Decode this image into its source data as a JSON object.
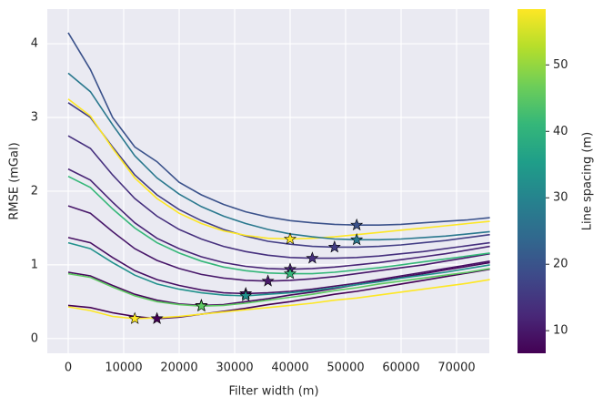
{
  "chart_data": {
    "type": "line",
    "xlabel": "Filter width (m)",
    "ylabel": "RMSE (mGal)",
    "xlim": [
      -3770,
      75900
    ],
    "ylim": [
      -0.2,
      4.47
    ],
    "xticks": [
      0,
      10000,
      20000,
      30000,
      40000,
      50000,
      60000,
      70000
    ],
    "yticks": [
      0,
      1,
      2,
      3,
      4
    ],
    "grid": true,
    "x": [
      0,
      4000,
      8000,
      12000,
      16000,
      20000,
      24000,
      28000,
      32000,
      36000,
      40000,
      44000,
      48000,
      52000,
      56000,
      60000,
      64000,
      68000,
      72000,
      76000
    ],
    "series": [
      {
        "color": "#440154",
        "values": [
          0.45,
          0.42,
          0.35,
          0.3,
          0.27,
          0.29,
          0.33,
          0.37,
          0.41,
          0.46,
          0.5,
          0.55,
          0.6,
          0.64,
          0.69,
          0.74,
          0.79,
          0.84,
          0.89,
          0.94
        ],
        "min_x": 16000,
        "min_y": 0.27
      },
      {
        "color": "#fde725",
        "values": [
          0.43,
          0.38,
          0.3,
          0.27,
          0.28,
          0.3,
          0.33,
          0.36,
          0.39,
          0.42,
          0.45,
          0.48,
          0.52,
          0.55,
          0.59,
          0.63,
          0.67,
          0.71,
          0.75,
          0.8
        ],
        "min_x": 12000,
        "min_y": 0.27
      },
      {
        "color": "#46085c",
        "values": [
          0.9,
          0.85,
          0.72,
          0.6,
          0.52,
          0.47,
          0.45,
          0.46,
          0.5,
          0.54,
          0.59,
          0.63,
          0.68,
          0.73,
          0.78,
          0.83,
          0.88,
          0.93,
          0.98,
          1.03
        ],
        "min_x": 24000,
        "min_y": 0.45
      },
      {
        "color": "#5ec962",
        "values": [
          0.88,
          0.83,
          0.7,
          0.58,
          0.5,
          0.46,
          0.44,
          0.45,
          0.48,
          0.52,
          0.56,
          0.6,
          0.65,
          0.69,
          0.74,
          0.78,
          0.82,
          0.86,
          0.9,
          0.95
        ],
        "min_x": 24000,
        "min_y": 0.44
      },
      {
        "color": "#471063",
        "values": [
          1.37,
          1.3,
          1.1,
          0.92,
          0.8,
          0.72,
          0.66,
          0.62,
          0.61,
          0.62,
          0.64,
          0.67,
          0.71,
          0.75,
          0.8,
          0.85,
          0.9,
          0.95,
          1.0,
          1.05
        ],
        "min_x": 32000,
        "min_y": 0.61
      },
      {
        "color": "#21918c",
        "values": [
          1.3,
          1.22,
          1.03,
          0.86,
          0.74,
          0.67,
          0.62,
          0.59,
          0.58,
          0.6,
          0.62,
          0.65,
          0.69,
          0.73,
          0.77,
          0.82,
          0.86,
          0.9,
          0.95,
          1.0
        ],
        "min_x": 32000,
        "min_y": 0.58
      },
      {
        "color": "#48186a",
        "values": [
          1.8,
          1.7,
          1.45,
          1.22,
          1.06,
          0.95,
          0.87,
          0.82,
          0.79,
          0.78,
          0.79,
          0.81,
          0.84,
          0.88,
          0.92,
          0.96,
          1.0,
          1.05,
          1.1,
          1.15
        ],
        "min_x": 36000,
        "min_y": 0.78
      },
      {
        "color": "#482475",
        "values": [
          2.3,
          2.15,
          1.85,
          1.57,
          1.36,
          1.22,
          1.11,
          1.03,
          0.98,
          0.95,
          0.94,
          0.95,
          0.97,
          1.0,
          1.03,
          1.07,
          1.11,
          1.15,
          1.2,
          1.25
        ],
        "min_x": 40000,
        "min_y": 0.94
      },
      {
        "color": "#35b779",
        "values": [
          2.2,
          2.05,
          1.76,
          1.5,
          1.3,
          1.16,
          1.05,
          0.97,
          0.92,
          0.89,
          0.88,
          0.88,
          0.9,
          0.93,
          0.96,
          1.0,
          1.04,
          1.08,
          1.12,
          1.16
        ],
        "min_x": 40000,
        "min_y": 0.88
      },
      {
        "color": "#46307e",
        "values": [
          2.75,
          2.58,
          2.22,
          1.9,
          1.66,
          1.48,
          1.35,
          1.25,
          1.18,
          1.13,
          1.1,
          1.09,
          1.09,
          1.1,
          1.12,
          1.15,
          1.18,
          1.22,
          1.26,
          1.3
        ],
        "min_x": 44000,
        "min_y": 1.09
      },
      {
        "color": "#433e85",
        "values": [
          3.2,
          3.0,
          2.6,
          2.22,
          1.95,
          1.75,
          1.6,
          1.48,
          1.39,
          1.32,
          1.28,
          1.25,
          1.24,
          1.24,
          1.25,
          1.27,
          1.3,
          1.33,
          1.37,
          1.41
        ],
        "min_x": 48000,
        "min_y": 1.24
      },
      {
        "color": "#fde725",
        "values": [
          3.25,
          3.02,
          2.58,
          2.18,
          1.9,
          1.7,
          1.56,
          1.46,
          1.4,
          1.36,
          1.35,
          1.36,
          1.38,
          1.41,
          1.44,
          1.47,
          1.5,
          1.53,
          1.56,
          1.59
        ],
        "min_x": 40000,
        "min_y": 1.35
      },
      {
        "color": "#2a788e",
        "values": [
          3.6,
          3.35,
          2.9,
          2.48,
          2.18,
          1.96,
          1.79,
          1.66,
          1.56,
          1.48,
          1.42,
          1.38,
          1.35,
          1.34,
          1.34,
          1.35,
          1.37,
          1.39,
          1.42,
          1.45
        ],
        "min_x": 52000,
        "min_y": 1.34
      },
      {
        "color": "#3b528b",
        "values": [
          4.15,
          3.65,
          3.0,
          2.6,
          2.4,
          2.12,
          1.95,
          1.82,
          1.72,
          1.65,
          1.6,
          1.57,
          1.55,
          1.54,
          1.54,
          1.55,
          1.57,
          1.59,
          1.61,
          1.64
        ],
        "min_x": 52000,
        "min_y": 1.54
      }
    ],
    "colorbar": {
      "label": "Line spacing (m)",
      "clim": [
        6.6,
        58.4
      ],
      "ticks": [
        10,
        20,
        30,
        40,
        50
      ],
      "colors": [
        "#440154",
        "#482878",
        "#3e4989",
        "#31688e",
        "#26828e",
        "#1f9e89",
        "#35b779",
        "#6ece58",
        "#b5de2b",
        "#fde725"
      ]
    }
  }
}
